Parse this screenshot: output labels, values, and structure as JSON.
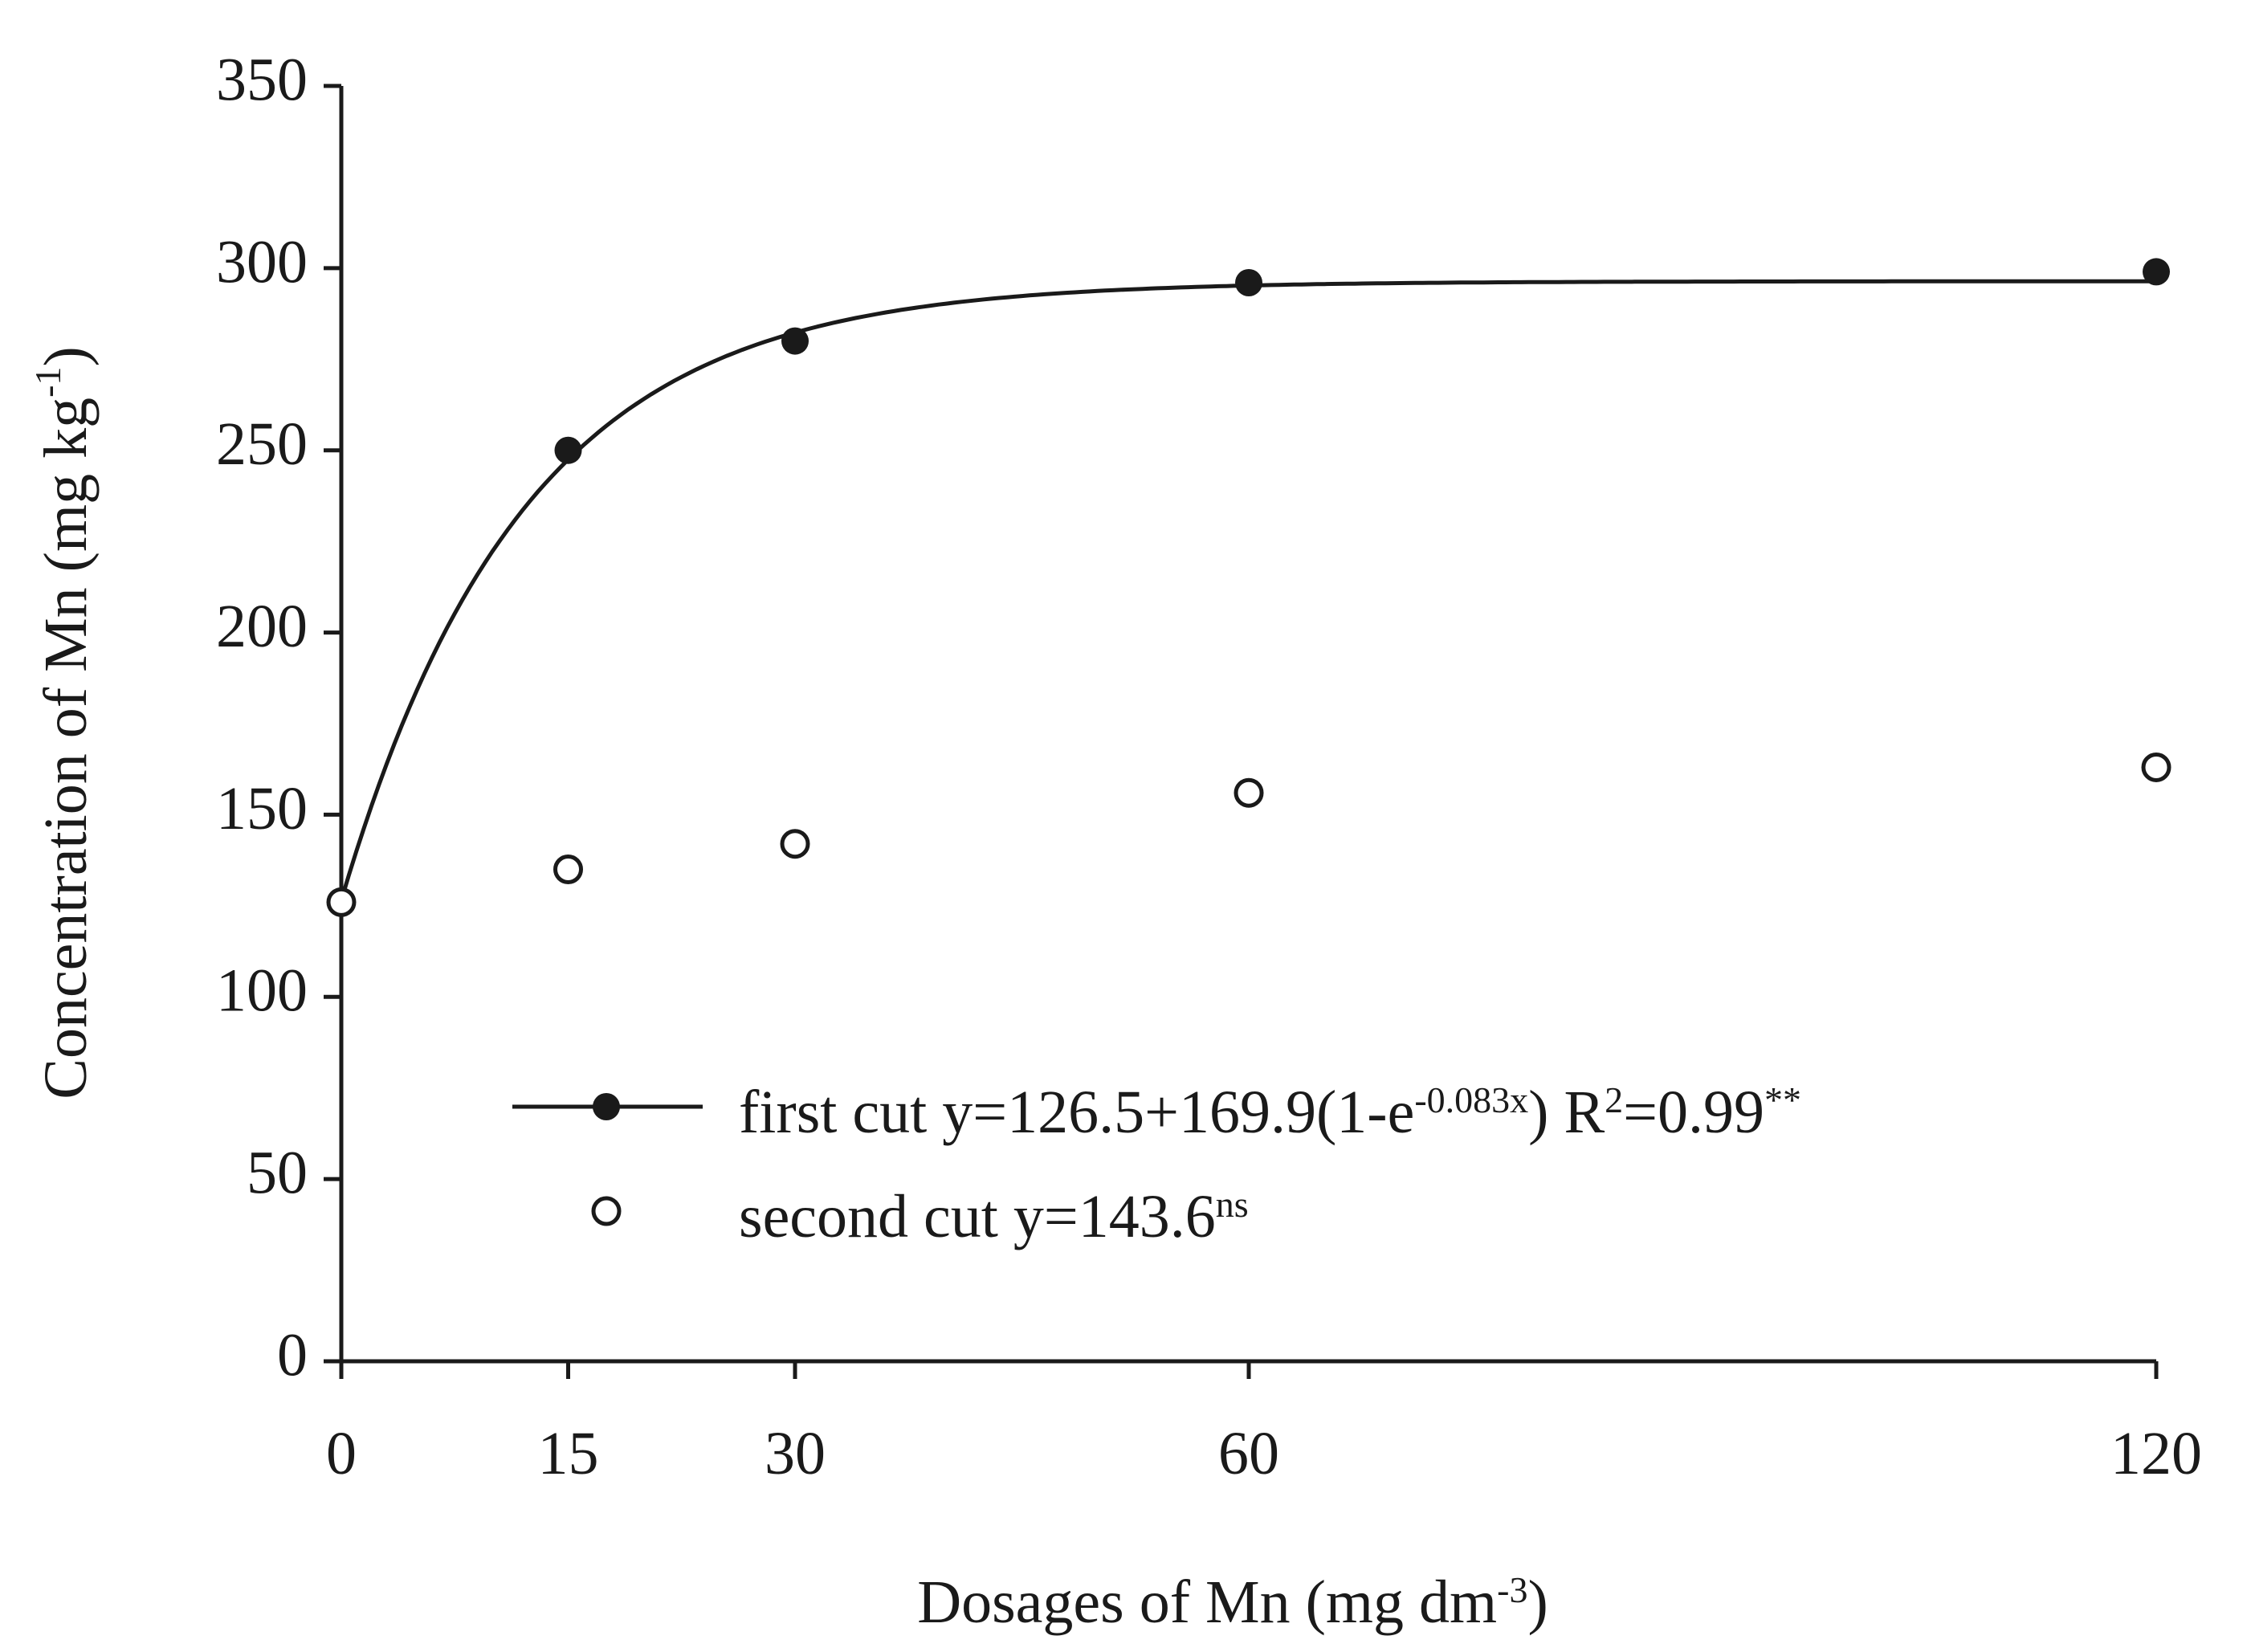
{
  "chart_data": {
    "type": "scatter",
    "xlabel": {
      "main": "Dosages of Mn (mg dm",
      "sup": "-3",
      "close": ")"
    },
    "ylabel": {
      "main": "Concentration of Mn (mg kg",
      "sup": "-1",
      "close": ")"
    },
    "xlim": [
      0,
      120
    ],
    "ylim": [
      0,
      350
    ],
    "x_ticks": [
      0,
      15,
      30,
      60,
      120
    ],
    "y_ticks": [
      0,
      50,
      100,
      150,
      200,
      250,
      300,
      350
    ],
    "grid": false,
    "legend_position": "bottom-center",
    "series": [
      {
        "name": "first cut",
        "marker": "filled-circle",
        "x": [
          0,
          15,
          30,
          60,
          120
        ],
        "y": [
          126,
          250,
          280,
          296,
          299
        ],
        "fit": {
          "model": "exponential-saturation",
          "a": 126.5,
          "b": 169.9,
          "k": 0.083
        }
      },
      {
        "name": "second cut",
        "marker": "open-circle",
        "x": [
          0,
          15,
          30,
          60,
          120
        ],
        "y": [
          126,
          135,
          142,
          156,
          163
        ]
      }
    ],
    "legend": [
      {
        "series": "first cut",
        "prefix": "first cut y=126.5+169.9(1-e",
        "sup1": "-0.083x",
        "middle": ") R",
        "sup2": "2",
        "suffix": "=0.99",
        "sup3": "**"
      },
      {
        "series": "second cut",
        "prefix": "second cut y=143.6",
        "sup1": "ns"
      }
    ]
  }
}
